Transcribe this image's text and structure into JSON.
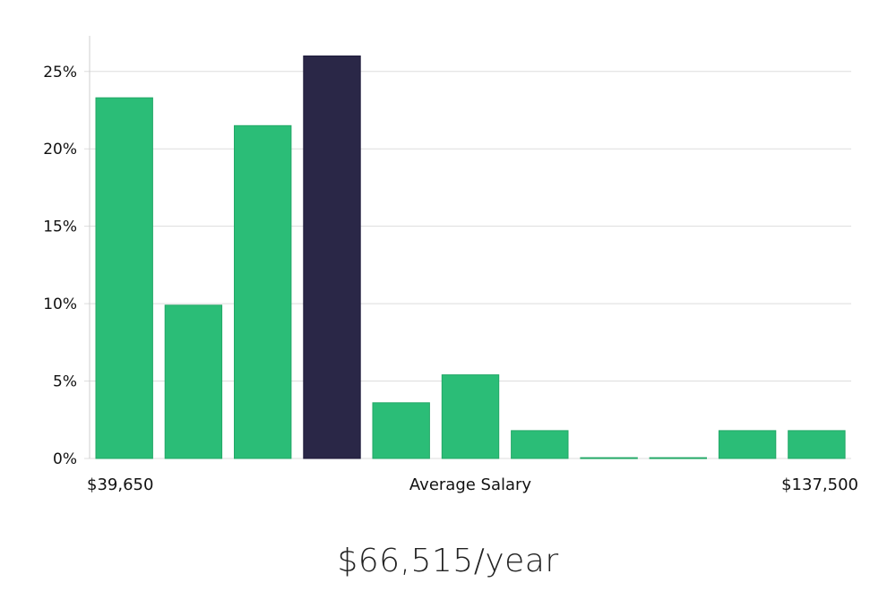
{
  "chart_data": {
    "type": "bar",
    "categories": [
      "bin-1",
      "bin-2",
      "bin-3",
      "bin-4",
      "bin-5",
      "bin-6",
      "bin-7",
      "bin-8",
      "bin-9",
      "bin-10",
      "bin-11"
    ],
    "values": [
      23.3,
      9.9,
      21.5,
      26.0,
      3.6,
      5.4,
      1.8,
      0.05,
      0.05,
      1.8,
      1.8
    ],
    "highlight_index": 3,
    "ylim": [
      0,
      27.3
    ],
    "y_ticks": [
      0,
      5,
      10,
      15,
      20,
      25
    ],
    "y_tick_suffix": "%",
    "x_min_label": "$39,650",
    "x_max_label": "$137,500",
    "xlabel": "Average Salary",
    "grid": true,
    "colors": {
      "bar": "#2bbd77",
      "highlight": "#2a2747",
      "grid": "#dddddd",
      "axis": "#cfcfcf"
    }
  },
  "salary_text": "$66,515/year"
}
